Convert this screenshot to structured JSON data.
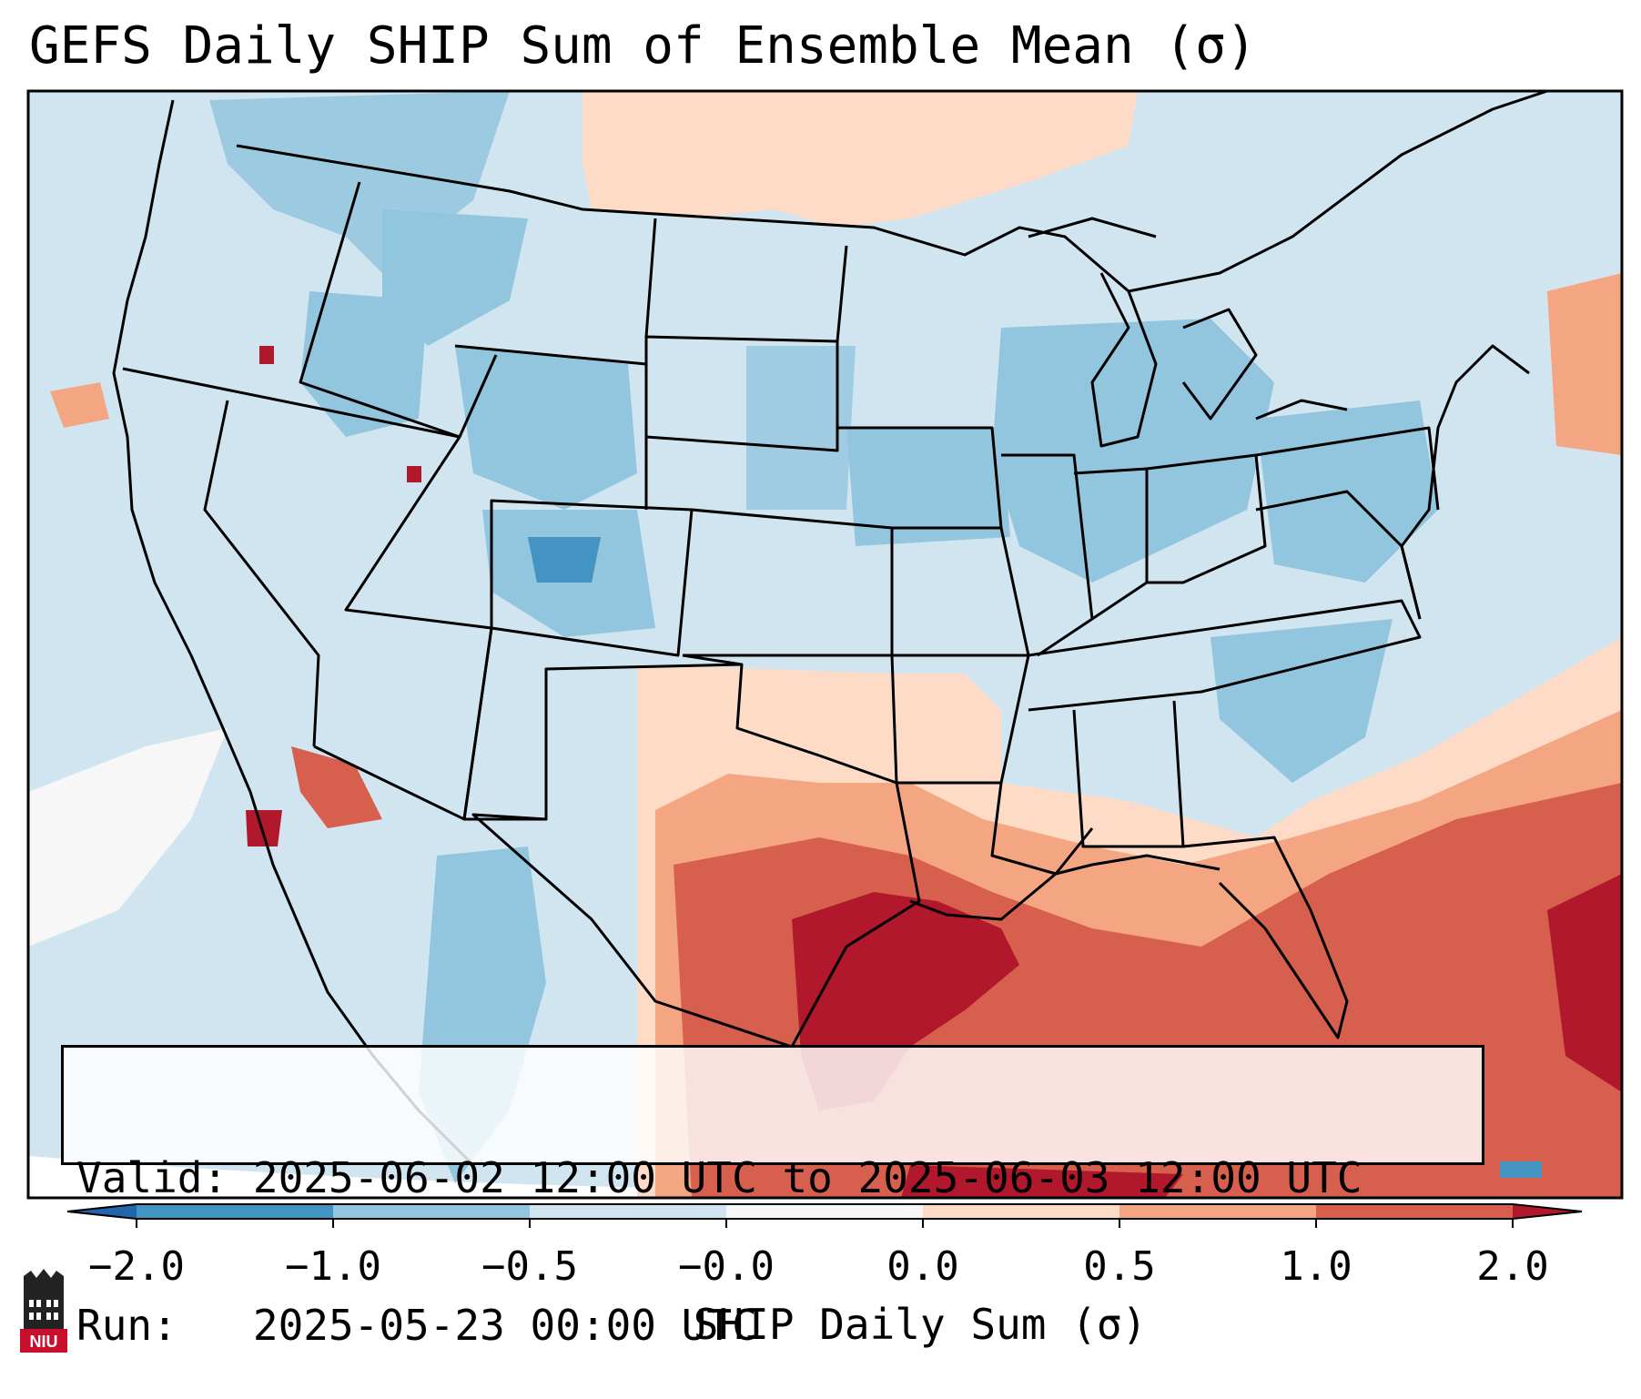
{
  "title": "GEFS Daily SHIP Sum of Ensemble Mean (σ)",
  "info": {
    "valid_label": "Valid:",
    "valid_value": "2025-06-02 12:00 UTC to 2025-06-03 12:00 UTC",
    "run_label": "Run:",
    "run_value": "2025-05-23 00:00 UTC"
  },
  "colorbar": {
    "label": "SHIP Daily Sum (σ)",
    "ticks": [
      "−2.0",
      "−1.0",
      "−0.5",
      "−0.0",
      "0.0",
      "0.5",
      "1.0",
      "2.0"
    ],
    "bins": [
      {
        "range": "< -2.0",
        "color": "#2166ac"
      },
      {
        "range": "-2.0 to -1.0",
        "color": "#4393c3"
      },
      {
        "range": "-1.0 to -0.5",
        "color": "#92c5de"
      },
      {
        "range": "-0.5 to -0.0",
        "color": "#d1e5f0"
      },
      {
        "range": "-0.0 to 0.0",
        "color": "#f7f7f7"
      },
      {
        "range": "0.0 to 0.5",
        "color": "#fddbc7"
      },
      {
        "range": "0.5 to 1.0",
        "color": "#f4a582"
      },
      {
        "range": "1.0 to 2.0",
        "color": "#d6604d"
      },
      {
        "range": "> 2.0",
        "color": "#b2182b"
      }
    ]
  },
  "map": {
    "background_value_color": "#d1e5f0",
    "land_outline_color": "#000000"
  },
  "logo": {
    "text": "NIU",
    "color": "#c8102e"
  }
}
